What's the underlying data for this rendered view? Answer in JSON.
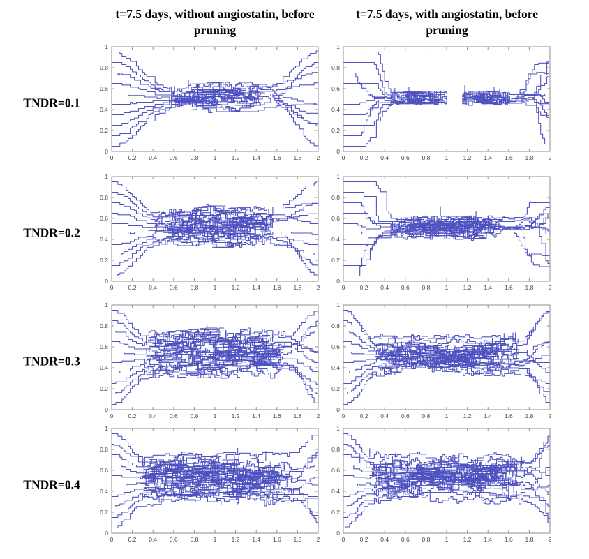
{
  "figure": {
    "col_headers": [
      {
        "title": "t=7.5 days, without angiostatin, before pruning"
      },
      {
        "title": "t=7.5 days, with angiostatin, before pruning"
      }
    ],
    "row_labels": [
      "TNDR=0.1",
      "TNDR=0.2",
      "TNDR=0.3",
      "TNDR=0.4"
    ]
  },
  "style": {
    "background": "#ffffff",
    "line_color": "#4f53c0",
    "axis_color": "#8f8f8f",
    "tick_label_color": "#4a4a4a",
    "text_color": "#000000"
  },
  "chart_data": [
    {
      "type": "line",
      "row": "TNDR=0.1",
      "condition": "without angiostatin",
      "time": "t=7.5 days",
      "stage": "before pruning",
      "xlim": [
        0,
        2
      ],
      "ylim": [
        0,
        1
      ],
      "xticks": [
        0,
        0.2,
        0.4,
        0.6,
        0.8,
        1,
        1.2,
        1.4,
        1.6,
        1.8,
        2
      ],
      "xtick_labels": [
        "0",
        "0.2",
        "0.4",
        "0.6",
        "0.8",
        "1",
        "1.2",
        "1.4",
        "1.6",
        "1.8",
        "2"
      ],
      "yticks": [
        0,
        0.2,
        0.4,
        0.6,
        0.8,
        1
      ],
      "ytick_labels": [
        "0",
        "0.2",
        "0.4",
        "0.6",
        "0.8",
        "1"
      ],
      "network": {
        "seed": 11,
        "n_inlets": 10,
        "inlet_y": [
          0.05,
          0.15,
          0.25,
          0.35,
          0.45,
          0.55,
          0.65,
          0.75,
          0.85,
          0.95
        ],
        "tangle_x": [
          0.55,
          1.45
        ],
        "tangle_y": [
          0.37,
          0.66
        ],
        "band_spread": 0.22,
        "density": 55,
        "steep": false,
        "gap_x": null,
        "profile": "lens"
      }
    },
    {
      "type": "line",
      "row": "TNDR=0.1",
      "condition": "with angiostatin",
      "time": "t=7.5 days",
      "stage": "before pruning",
      "xlim": [
        0,
        2
      ],
      "ylim": [
        0,
        1
      ],
      "xticks": [
        0,
        0.2,
        0.4,
        0.6,
        0.8,
        1,
        1.2,
        1.4,
        1.6,
        1.8,
        2
      ],
      "xtick_labels": [
        "0",
        "0.2",
        "0.4",
        "0.6",
        "0.8",
        "1",
        "1.2",
        "1.4",
        "1.6",
        "1.8",
        "2"
      ],
      "yticks": [
        0,
        0.2,
        0.4,
        0.6,
        0.8,
        1
      ],
      "ytick_labels": [
        "0",
        "0.2",
        "0.4",
        "0.6",
        "0.8",
        "1"
      ],
      "network": {
        "seed": 22,
        "n_inlets": 10,
        "inlet_y": [
          0.05,
          0.15,
          0.25,
          0.35,
          0.45,
          0.55,
          0.65,
          0.75,
          0.85,
          0.95
        ],
        "tangle_x": [
          0.45,
          1.62
        ],
        "tangle_y": [
          0.45,
          0.58
        ],
        "band_spread": 0.1,
        "density": 40,
        "steep": true,
        "gap_x": [
          1.0,
          1.15
        ],
        "profile": "flat"
      }
    },
    {
      "type": "line",
      "row": "TNDR=0.2",
      "condition": "without angiostatin",
      "time": "t=7.5 days",
      "stage": "before pruning",
      "xlim": [
        0,
        2
      ],
      "ylim": [
        0,
        1
      ],
      "xticks": [
        0,
        0.2,
        0.4,
        0.6,
        0.8,
        1,
        1.2,
        1.4,
        1.6,
        1.8,
        2
      ],
      "xtick_labels": [
        "0",
        "0.2",
        "0.4",
        "0.6",
        "0.8",
        "1",
        "1.2",
        "1.4",
        "1.6",
        "1.8",
        "2"
      ],
      "yticks": [
        0,
        0.2,
        0.4,
        0.6,
        0.8,
        1
      ],
      "ytick_labels": [
        "0",
        "0.2",
        "0.4",
        "0.6",
        "0.8",
        "1"
      ],
      "network": {
        "seed": 33,
        "n_inlets": 10,
        "inlet_y": [
          0.05,
          0.15,
          0.25,
          0.35,
          0.45,
          0.55,
          0.65,
          0.75,
          0.85,
          0.95
        ],
        "tangle_x": [
          0.42,
          1.58
        ],
        "tangle_y": [
          0.32,
          0.72
        ],
        "band_spread": 0.35,
        "density": 110,
        "steep": false,
        "gap_x": null,
        "profile": "lens"
      }
    },
    {
      "type": "line",
      "row": "TNDR=0.2",
      "condition": "with angiostatin",
      "time": "t=7.5 days",
      "stage": "before pruning",
      "xlim": [
        0,
        2
      ],
      "ylim": [
        0,
        1
      ],
      "xticks": [
        0,
        0.2,
        0.4,
        0.6,
        0.8,
        1,
        1.2,
        1.4,
        1.6,
        1.8,
        2
      ],
      "xtick_labels": [
        "0",
        "0.2",
        "0.4",
        "0.6",
        "0.8",
        "1",
        "1.2",
        "1.4",
        "1.6",
        "1.8",
        "2"
      ],
      "yticks": [
        0,
        0.2,
        0.4,
        0.6,
        0.8,
        1
      ],
      "ytick_labels": [
        "0",
        "0.2",
        "0.4",
        "0.6",
        "0.8",
        "1"
      ],
      "network": {
        "seed": 44,
        "n_inlets": 10,
        "inlet_y": [
          0.05,
          0.15,
          0.25,
          0.35,
          0.45,
          0.55,
          0.65,
          0.75,
          0.85,
          0.95
        ],
        "tangle_x": [
          0.45,
          1.55
        ],
        "tangle_y": [
          0.4,
          0.62
        ],
        "band_spread": 0.18,
        "density": 85,
        "steep": true,
        "gap_x": null,
        "profile": "flat"
      }
    },
    {
      "type": "line",
      "row": "TNDR=0.3",
      "condition": "without angiostatin",
      "time": "t=7.5 days",
      "stage": "before pruning",
      "xlim": [
        0,
        2
      ],
      "ylim": [
        0,
        1
      ],
      "xticks": [
        0,
        0.2,
        0.4,
        0.6,
        0.8,
        1,
        1.2,
        1.4,
        1.6,
        1.8,
        2
      ],
      "xtick_labels": [
        "0",
        "0.2",
        "0.4",
        "0.6",
        "0.8",
        "1",
        "1.2",
        "1.4",
        "1.6",
        "1.8",
        "2"
      ],
      "yticks": [
        0,
        0.2,
        0.4,
        0.6,
        0.8,
        1
      ],
      "ytick_labels": [
        "0",
        "0.2",
        "0.4",
        "0.6",
        "0.8",
        "1"
      ],
      "network": {
        "seed": 55,
        "n_inlets": 10,
        "inlet_y": [
          0.05,
          0.15,
          0.25,
          0.35,
          0.45,
          0.55,
          0.65,
          0.75,
          0.85,
          0.95
        ],
        "tangle_x": [
          0.32,
          1.68
        ],
        "tangle_y": [
          0.3,
          0.78
        ],
        "band_spread": 0.45,
        "density": 150,
        "steep": false,
        "gap_x": null,
        "profile": "flat"
      }
    },
    {
      "type": "line",
      "row": "TNDR=0.3",
      "condition": "with angiostatin",
      "time": "t=7.5 days",
      "stage": "before pruning",
      "xlim": [
        0,
        2
      ],
      "ylim": [
        0,
        1
      ],
      "xticks": [
        0,
        0.2,
        0.4,
        0.6,
        0.8,
        1,
        1.2,
        1.4,
        1.6,
        1.8,
        2
      ],
      "xtick_labels": [
        "0",
        "0.2",
        "0.4",
        "0.6",
        "0.8",
        "1",
        "1.2",
        "1.4",
        "1.6",
        "1.8",
        "2"
      ],
      "yticks": [
        0,
        0.2,
        0.4,
        0.6,
        0.8,
        1
      ],
      "ytick_labels": [
        "0",
        "0.2",
        "0.4",
        "0.6",
        "0.8",
        "1"
      ],
      "network": {
        "seed": 66,
        "n_inlets": 10,
        "inlet_y": [
          0.05,
          0.15,
          0.25,
          0.35,
          0.45,
          0.55,
          0.65,
          0.75,
          0.85,
          0.95
        ],
        "tangle_x": [
          0.3,
          1.7
        ],
        "tangle_y": [
          0.32,
          0.72
        ],
        "band_spread": 0.38,
        "density": 135,
        "steep": false,
        "gap_x": null,
        "profile": "pinch"
      }
    },
    {
      "type": "line",
      "row": "TNDR=0.4",
      "condition": "without angiostatin",
      "time": "t=7.5 days",
      "stage": "before pruning",
      "xlim": [
        0,
        2
      ],
      "ylim": [
        0,
        1
      ],
      "xticks": [
        0,
        0.2,
        0.4,
        0.6,
        0.8,
        1,
        1.2,
        1.4,
        1.6,
        1.8,
        2
      ],
      "xtick_labels": [
        "0",
        "0.2",
        "0.4",
        "0.6",
        "0.8",
        "1",
        "1.2",
        "1.4",
        "1.6",
        "1.8",
        "2"
      ],
      "yticks": [
        0,
        0.2,
        0.4,
        0.6,
        0.8,
        1
      ],
      "ytick_labels": [
        "0",
        "0.2",
        "0.4",
        "0.6",
        "0.8",
        "1"
      ],
      "network": {
        "seed": 77,
        "n_inlets": 10,
        "inlet_y": [
          0.05,
          0.15,
          0.25,
          0.35,
          0.45,
          0.55,
          0.65,
          0.75,
          0.85,
          0.95
        ],
        "tangle_x": [
          0.28,
          1.75
        ],
        "tangle_y": [
          0.26,
          0.78
        ],
        "band_spread": 0.52,
        "density": 190,
        "steep": false,
        "gap_x": null,
        "profile": "flat"
      }
    },
    {
      "type": "line",
      "row": "TNDR=0.4",
      "condition": "with angiostatin",
      "time": "t=7.5 days",
      "stage": "before pruning",
      "xlim": [
        0,
        2
      ],
      "ylim": [
        0,
        1
      ],
      "xticks": [
        0,
        0.2,
        0.4,
        0.6,
        0.8,
        1,
        1.2,
        1.4,
        1.6,
        1.8,
        2
      ],
      "xtick_labels": [
        "0",
        "0.2",
        "0.4",
        "0.6",
        "0.8",
        "1",
        "1.2",
        "1.4",
        "1.6",
        "1.8",
        "2"
      ],
      "yticks": [
        0,
        0.2,
        0.4,
        0.6,
        0.8,
        1
      ],
      "ytick_labels": [
        "0",
        "0.2",
        "0.4",
        "0.6",
        "0.8",
        "1"
      ],
      "network": {
        "seed": 88,
        "n_inlets": 10,
        "inlet_y": [
          0.05,
          0.15,
          0.25,
          0.35,
          0.45,
          0.55,
          0.65,
          0.75,
          0.85,
          0.95
        ],
        "tangle_x": [
          0.25,
          1.78
        ],
        "tangle_y": [
          0.28,
          0.8
        ],
        "band_spread": 0.5,
        "density": 175,
        "steep": false,
        "gap_x": null,
        "profile": "pinch"
      }
    }
  ]
}
